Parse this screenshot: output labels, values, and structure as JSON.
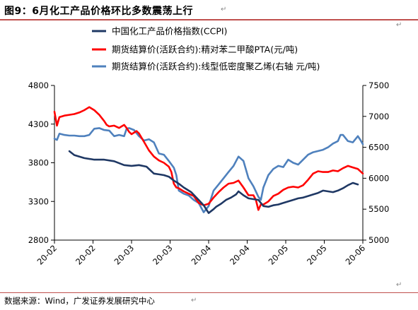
{
  "figure": {
    "title": "图9：6月化工产品价格环比多数震荡上行",
    "source": "数据来源：Wind，广发证券发展研究中心"
  },
  "colors": {
    "ccpi": "#1f3864",
    "pta": "#ff0000",
    "pe": "#4f81bd",
    "rule": "#c0504d",
    "axis": "#000000"
  },
  "chart_data": {
    "type": "line",
    "legend_position": "top",
    "grid": false,
    "x_ticks": [
      "20-02",
      "20-02",
      "20-03",
      "20-03",
      "20-04",
      "20-04",
      "20-05",
      "20-05",
      "20-06"
    ],
    "x_range": [
      0,
      124
    ],
    "x_tick_positions": [
      0,
      15.5,
      31,
      46.5,
      62,
      77.5,
      93,
      108.5,
      124
    ],
    "y_left": {
      "range": [
        2800,
        4800
      ],
      "ticks": [
        "2800",
        "3300",
        "3800",
        "4300",
        "4800"
      ]
    },
    "y_right": {
      "range": [
        5000,
        7500
      ],
      "ticks": [
        "5000",
        "5500",
        "6000",
        "6500",
        "7000",
        "7500"
      ]
    },
    "series": [
      {
        "name": "中国化工产品价格指数(CCPI)",
        "axis": "left",
        "color_key": "ccpi",
        "x": [
          6,
          8,
          12,
          16,
          20,
          24,
          28,
          31,
          34,
          37,
          40,
          42,
          44,
          46,
          48,
          50,
          52,
          55,
          58,
          60,
          62,
          64,
          65,
          67,
          69,
          71,
          73,
          74,
          76,
          78,
          80,
          82,
          84,
          86,
          88,
          90,
          92,
          94,
          96,
          98,
          100,
          102,
          104,
          106,
          108,
          110,
          112,
          114,
          116,
          118,
          120,
          122
        ],
        "y": [
          3950,
          3900,
          3860,
          3840,
          3840,
          3820,
          3770,
          3760,
          3770,
          3750,
          3660,
          3650,
          3640,
          3620,
          3570,
          3530,
          3480,
          3420,
          3320,
          3250,
          3150,
          3200,
          3230,
          3270,
          3320,
          3350,
          3390,
          3430,
          3380,
          3340,
          3330,
          3320,
          3240,
          3230,
          3250,
          3260,
          3280,
          3300,
          3320,
          3340,
          3350,
          3370,
          3390,
          3410,
          3440,
          3430,
          3420,
          3440,
          3470,
          3510,
          3540,
          3520
        ]
      },
      {
        "name": "期货结算价(活跃合约):精对苯二甲酸PTA(元/吨)",
        "axis": "left",
        "color_key": "pta",
        "x": [
          0,
          1,
          2,
          4,
          6,
          8,
          10,
          12,
          13,
          14,
          16,
          18,
          20,
          21,
          22,
          24,
          26,
          27,
          28,
          29,
          30,
          31,
          33,
          34,
          36,
          38,
          40,
          42,
          44,
          46,
          47,
          48,
          49,
          50,
          52,
          54,
          56,
          58,
          60,
          62,
          64,
          66,
          68,
          70,
          72,
          74,
          76,
          78,
          80,
          81,
          82,
          83,
          84,
          86,
          88,
          90,
          92,
          94,
          96,
          98,
          100,
          102,
          104,
          106,
          108,
          110,
          112,
          114,
          116,
          118,
          120,
          122,
          124
        ],
        "y": [
          4460,
          4280,
          4390,
          4410,
          4420,
          4430,
          4450,
          4480,
          4500,
          4520,
          4480,
          4420,
          4340,
          4290,
          4270,
          4280,
          4250,
          4270,
          4290,
          4250,
          4200,
          4170,
          4210,
          4180,
          4070,
          3960,
          3880,
          3830,
          3800,
          3750,
          3680,
          3530,
          3480,
          3470,
          3430,
          3400,
          3370,
          3280,
          3250,
          3270,
          3350,
          3420,
          3480,
          3530,
          3540,
          3570,
          3480,
          3380,
          3380,
          3320,
          3190,
          3260,
          3260,
          3300,
          3370,
          3400,
          3450,
          3480,
          3490,
          3480,
          3510,
          3580,
          3660,
          3690,
          3680,
          3680,
          3700,
          3690,
          3730,
          3760,
          3740,
          3720,
          3660
        ]
      },
      {
        "name": "期货结算价(活跃合约):线型低密度聚乙烯(右轴 元/吨)",
        "axis": "right",
        "color_key": "pe",
        "x": [
          0,
          1,
          2,
          4,
          6,
          8,
          10,
          12,
          14,
          15,
          16,
          18,
          20,
          22,
          24,
          26,
          28,
          29,
          30,
          32,
          34,
          36,
          38,
          40,
          42,
          44,
          46,
          48,
          49,
          50,
          52,
          54,
          56,
          58,
          60,
          62,
          64,
          66,
          68,
          70,
          72,
          74,
          76,
          78,
          80,
          82,
          83,
          84,
          86,
          88,
          90,
          92,
          94,
          96,
          98,
          100,
          102,
          104,
          106,
          108,
          110,
          112,
          114,
          115,
          116,
          118,
          120,
          122,
          123,
          124
        ],
        "y": [
          6640,
          6620,
          6720,
          6700,
          6690,
          6690,
          6680,
          6680,
          6700,
          6750,
          6800,
          6810,
          6780,
          6770,
          6680,
          6700,
          6680,
          6800,
          6810,
          6780,
          6680,
          6610,
          6630,
          6580,
          6400,
          6380,
          6280,
          6170,
          6050,
          5800,
          5750,
          5720,
          5650,
          5600,
          5450,
          5550,
          5800,
          5900,
          6000,
          6100,
          6200,
          6350,
          6280,
          6000,
          5870,
          5700,
          5650,
          5850,
          6050,
          6150,
          6200,
          6180,
          6300,
          6250,
          6220,
          6300,
          6380,
          6420,
          6440,
          6460,
          6500,
          6560,
          6600,
          6700,
          6700,
          6600,
          6580,
          6680,
          6620,
          6550
        ]
      }
    ]
  }
}
